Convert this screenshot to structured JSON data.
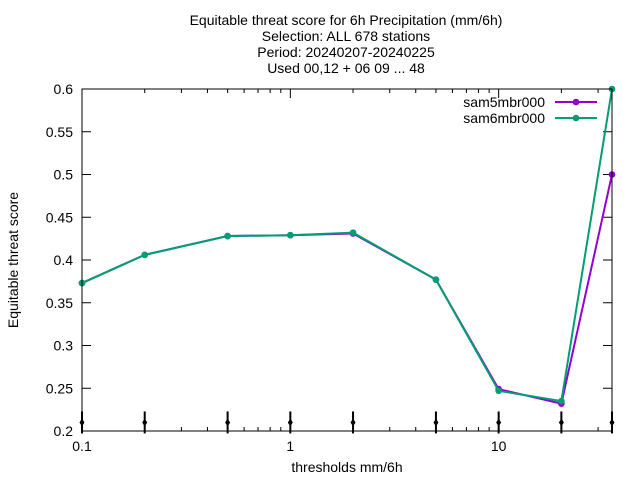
{
  "chart_data": {
    "type": "line",
    "title_lines": [
      "Equitable threat score  for 6h Precipitation (mm/6h)",
      "Selection: ALL    678 stations",
      "Period: 20240207-20240225",
      "Used 00,12 + 06 09 ... 48"
    ],
    "xlabel": "thresholds mm/6h",
    "ylabel": "Equitable threat score",
    "x_scale": "log",
    "xlim": [
      0.1,
      35
    ],
    "ylim": [
      0.2,
      0.6
    ],
    "x_ticks": [
      0.1,
      1,
      10
    ],
    "x_tick_labels": [
      "0.1",
      "1",
      "10"
    ],
    "y_ticks": [
      0.2,
      0.25,
      0.3,
      0.35,
      0.4,
      0.45,
      0.5,
      0.55,
      0.6
    ],
    "y_tick_labels": [
      "0.2",
      "0.25",
      "0.3",
      "0.35",
      "0.4",
      "0.45",
      "0.5",
      "0.55",
      "0.6"
    ],
    "grid": false,
    "legend_position": "top-right",
    "x": [
      0.1,
      0.2,
      0.5,
      1,
      2,
      5,
      10,
      20,
      35
    ],
    "series": [
      {
        "name": "sam5mbr000",
        "color": "#9400d3",
        "values": [
          0.373,
          0.406,
          0.428,
          0.429,
          0.431,
          0.377,
          0.249,
          0.232,
          0.5
        ]
      },
      {
        "name": "sam6mbr000",
        "color": "#009e73",
        "values": [
          0.373,
          0.406,
          0.428,
          0.429,
          0.432,
          0.377,
          0.247,
          0.235,
          0.6
        ]
      }
    ],
    "sample_markers_x": [
      0.1,
      0.2,
      0.5,
      1,
      2,
      5,
      10,
      20,
      35
    ]
  }
}
